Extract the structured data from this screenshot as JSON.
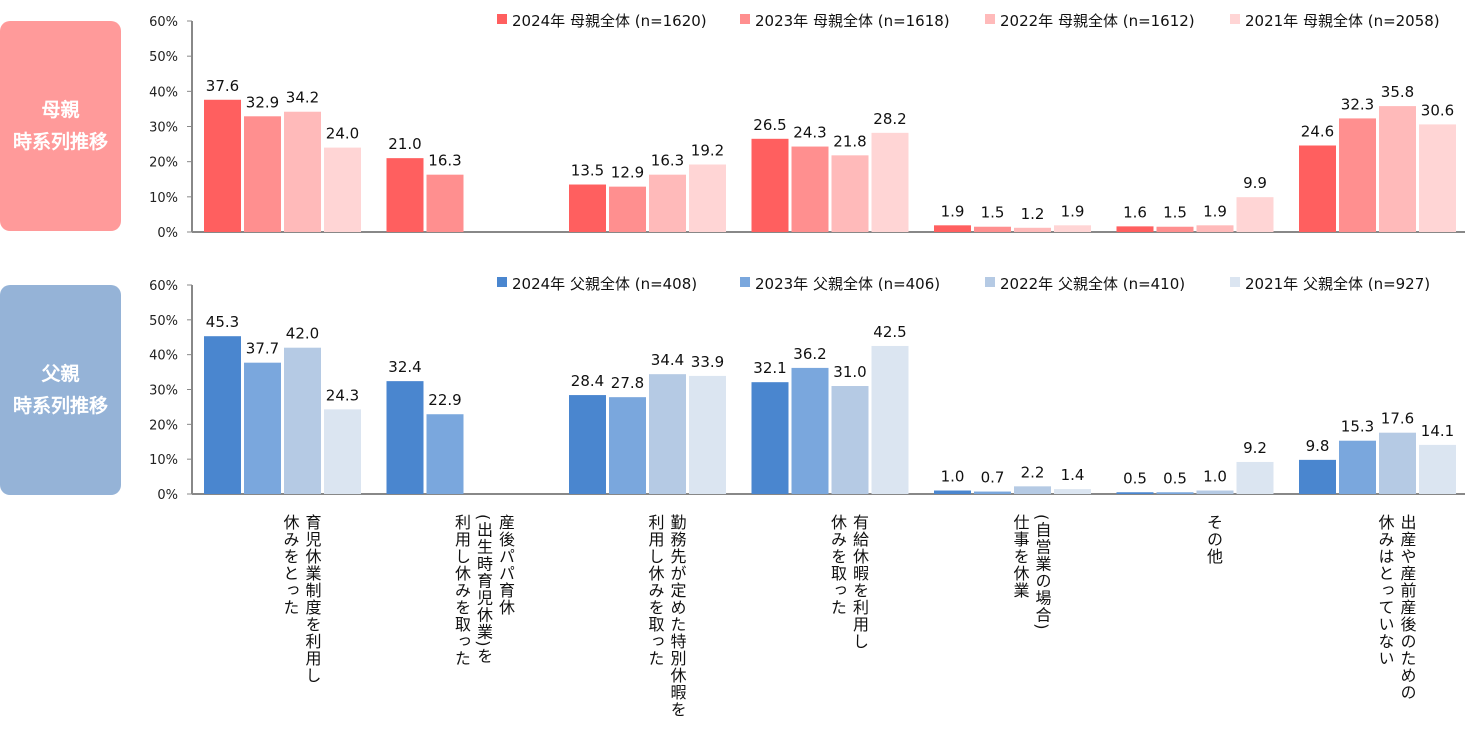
{
  "side_labels": {
    "mother": [
      "母親",
      "時系列推移"
    ],
    "father": [
      "父親",
      "時系列推移"
    ]
  },
  "categories": [
    [
      "育児休業制度を利用し",
      "休みをとった"
    ],
    [
      "産後パパ育休",
      "(出生時育児休業)を",
      "利用し休みを取った"
    ],
    [
      "勤務先が定めた特別休暇を",
      "利用し休みを取った"
    ],
    [
      "有給休暇を利用し",
      "休みを取った"
    ],
    [
      "(自営業の場合)",
      "仕事を休業"
    ],
    [
      "その他"
    ],
    [
      "出産や産前産後のための",
      "休みはとっていない"
    ]
  ],
  "chart_data": [
    {
      "type": "bar",
      "title": "母親 時系列推移",
      "xlabel": "",
      "ylabel": "",
      "ylim": [
        0,
        60
      ],
      "yticks": [
        "0%",
        "10%",
        "20%",
        "30%",
        "40%",
        "50%",
        "60%"
      ],
      "legend_position": "top-right",
      "categories": [
        "育児休業制度を利用し休みをとった",
        "産後パパ育休(出生時育児休業)を利用し休みを取った",
        "勤務先が定めた特別休暇を利用し休みを取った",
        "有給休暇を利用し休みを取った",
        "(自営業の場合)仕事を休業",
        "その他",
        "出産や産前産後のための休みはとっていない"
      ],
      "series": [
        {
          "name": "2024年  母親全体 (n=1620)",
          "color": "#ff5f5f",
          "values": [
            37.6,
            21.0,
            13.5,
            26.5,
            1.9,
            1.6,
            24.6
          ]
        },
        {
          "name": "2023年  母親全体 (n=1618)",
          "color": "#ff8f8f",
          "values": [
            32.9,
            16.3,
            12.9,
            24.3,
            1.5,
            1.5,
            32.3
          ]
        },
        {
          "name": "2022年  母親全体 (n=1612)",
          "color": "#ffbaba",
          "values": [
            34.2,
            null,
            16.3,
            21.8,
            1.2,
            1.9,
            35.8
          ]
        },
        {
          "name": "2021年  母親全体 (n=2058)",
          "color": "#ffd5d5",
          "values": [
            24.0,
            null,
            19.2,
            28.2,
            1.9,
            9.9,
            30.6
          ]
        }
      ]
    },
    {
      "type": "bar",
      "title": "父親 時系列推移",
      "xlabel": "",
      "ylabel": "",
      "ylim": [
        0,
        60
      ],
      "yticks": [
        "0%",
        "10%",
        "20%",
        "30%",
        "40%",
        "50%",
        "60%"
      ],
      "legend_position": "top-right",
      "categories": [
        "育児休業制度を利用し休みをとった",
        "産後パパ育休(出生時育児休業)を利用し休みを取った",
        "勤務先が定めた特別休暇を利用し休みを取った",
        "有給休暇を利用し休みを取った",
        "(自営業の場合)仕事を休業",
        "その他",
        "出産や産前産後のための休みはとっていない"
      ],
      "series": [
        {
          "name": "2024年  父親全体 (n=408)",
          "color": "#4a86cf",
          "values": [
            45.3,
            32.4,
            28.4,
            32.1,
            1.0,
            0.5,
            9.8
          ]
        },
        {
          "name": "2023年  父親全体 (n=406)",
          "color": "#7aa7dd",
          "values": [
            37.7,
            22.9,
            27.8,
            36.2,
            0.7,
            0.5,
            15.3
          ]
        },
        {
          "name": "2022年  父親全体 (n=410)",
          "color": "#b5cae4",
          "values": [
            42.0,
            null,
            34.4,
            31.0,
            2.2,
            1.0,
            17.6
          ]
        },
        {
          "name": "2021年  父親全体 (n=927)",
          "color": "#dbe5f1",
          "values": [
            24.3,
            null,
            33.9,
            42.5,
            1.4,
            9.2,
            14.1
          ]
        }
      ]
    }
  ]
}
